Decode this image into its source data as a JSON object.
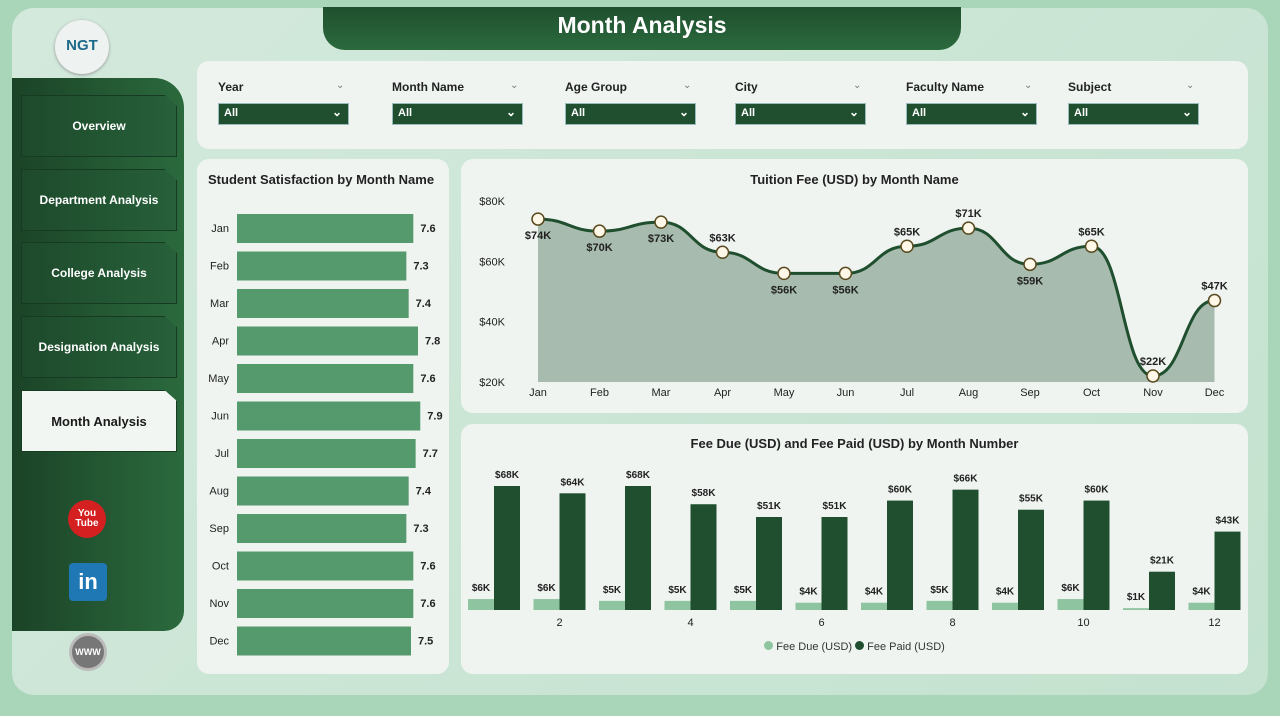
{
  "header": {
    "title": "Month Analysis",
    "logo_text": "NGT"
  },
  "sidebar": {
    "items": [
      {
        "label": "Overview",
        "active": false
      },
      {
        "label": "Department Analysis",
        "active": false
      },
      {
        "label": "College Analysis",
        "active": false
      },
      {
        "label": "Designation Analysis",
        "active": false
      },
      {
        "label": "Month Analysis",
        "active": true
      }
    ],
    "social": [
      {
        "icon": "youtube-icon",
        "label": "You Tube"
      },
      {
        "icon": "linkedin-icon",
        "label": "in"
      },
      {
        "icon": "globe-icon",
        "label": "WWW"
      }
    ]
  },
  "filters": [
    {
      "label": "Year",
      "value": "All"
    },
    {
      "label": "Month Name",
      "value": "All"
    },
    {
      "label": "Age Group",
      "value": "All"
    },
    {
      "label": "City",
      "value": "All"
    },
    {
      "label": "Faculty Name",
      "value": "All"
    },
    {
      "label": "Subject",
      "value": "All"
    }
  ],
  "colors": {
    "dark_green": "#1f4f2e",
    "bar_green": "#559a6c",
    "light_green": "#8fc4a0",
    "area": "#a7bcae"
  },
  "chart_data": [
    {
      "type": "bar",
      "orientation": "horizontal",
      "title": "Student Satisfaction by Month Name",
      "categories": [
        "Jan",
        "Feb",
        "Mar",
        "Apr",
        "May",
        "Jun",
        "Jul",
        "Aug",
        "Sep",
        "Oct",
        "Nov",
        "Dec"
      ],
      "values": [
        7.6,
        7.3,
        7.4,
        7.8,
        7.6,
        7.9,
        7.7,
        7.4,
        7.3,
        7.6,
        7.6,
        7.5
      ],
      "data_labels": [
        "7.6",
        "7.3",
        "7.4",
        "7.8",
        "7.6",
        "7.9",
        "7.7",
        "7.4",
        "7.3",
        "7.6",
        "7.6",
        "7.5"
      ]
    },
    {
      "type": "area",
      "title": "Tuition Fee (USD) by Month Name",
      "categories": [
        "Jan",
        "Feb",
        "Mar",
        "Apr",
        "May",
        "Jun",
        "Jul",
        "Aug",
        "Sep",
        "Oct",
        "Nov",
        "Dec"
      ],
      "values": [
        74000,
        70000,
        73000,
        63000,
        56000,
        56000,
        65000,
        71000,
        59000,
        65000,
        22000,
        47000
      ],
      "data_labels": [
        "$74K",
        "$70K",
        "$73K",
        "$63K",
        "$56K",
        "$56K",
        "$65K",
        "$71K",
        "$59K",
        "$65K",
        "$22K",
        "$47K"
      ],
      "yticks": [
        "$80K",
        "$60K",
        "$40K",
        "$20K"
      ],
      "ylim": [
        20000,
        80000
      ]
    },
    {
      "type": "bar",
      "title": "Fee Due (USD) and Fee Paid (USD) by Month Number",
      "categories": [
        1,
        2,
        3,
        4,
        5,
        6,
        7,
        8,
        9,
        10,
        11,
        12
      ],
      "xticks": [
        "2",
        "4",
        "6",
        "8",
        "10",
        "12"
      ],
      "series": [
        {
          "name": "Fee Due (USD)",
          "color": "#8fc4a0",
          "values": [
            6000,
            6000,
            5000,
            5000,
            5000,
            4000,
            4000,
            5000,
            4000,
            6000,
            1000,
            4000
          ],
          "data_labels": [
            "$6K",
            "$6K",
            "$5K",
            "$5K",
            "$5K",
            "$4K",
            "$4K",
            "$5K",
            "$4K",
            "$6K",
            "$1K",
            "$4K"
          ]
        },
        {
          "name": "Fee Paid (USD)",
          "color": "#1f4f2e",
          "values": [
            68000,
            64000,
            68000,
            58000,
            51000,
            51000,
            60000,
            66000,
            55000,
            60000,
            21000,
            43000
          ],
          "data_labels": [
            "$68K",
            "$64K",
            "$68K",
            "$58K",
            "$51K",
            "$51K",
            "$60K",
            "$66K",
            "$55K",
            "$60K",
            "$21K",
            "$43K"
          ]
        }
      ],
      "legend": "bottom"
    }
  ]
}
